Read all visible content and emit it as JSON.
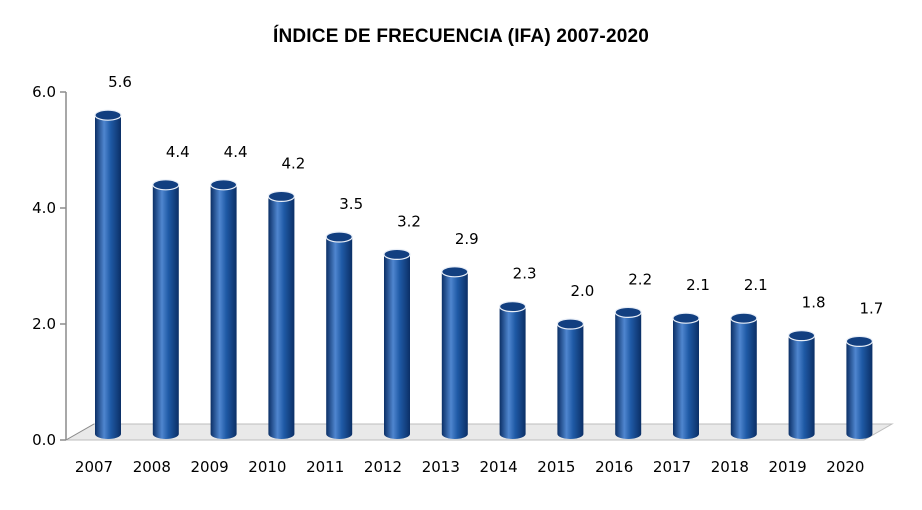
{
  "chart_data": {
    "type": "bar",
    "title": "ÍNDICE DE FRECUENCIA (IFA) 2007-2020",
    "categories": [
      "2007",
      "2008",
      "2009",
      "2010",
      "2011",
      "2012",
      "2013",
      "2014",
      "2015",
      "2016",
      "2017",
      "2018",
      "2019",
      "2020"
    ],
    "values": [
      5.6,
      4.4,
      4.4,
      4.2,
      3.5,
      3.2,
      2.9,
      2.3,
      2.0,
      2.2,
      2.1,
      2.1,
      1.8,
      1.7
    ],
    "data_labels": [
      "5.6",
      "4.4",
      "4.4",
      "4.2",
      "3.5",
      "3.2",
      "2.9",
      "2.3",
      "2.0",
      "2.2",
      "2.1",
      "2.1",
      "1.8",
      "1.7"
    ],
    "y_ticks": [
      "0.0",
      "2.0",
      "4.0",
      "6.0"
    ],
    "ylim": [
      0,
      6
    ],
    "style": "3d-cylinder",
    "legend": "none",
    "grid": false,
    "colors": {
      "bar_main": "#1f5aa6",
      "bar_dark": "#0b2f66",
      "bar_light": "#4f86cf",
      "bar_top": "#123f80",
      "floor": "#e9e9e9",
      "axis": "#8c8c8c"
    }
  }
}
